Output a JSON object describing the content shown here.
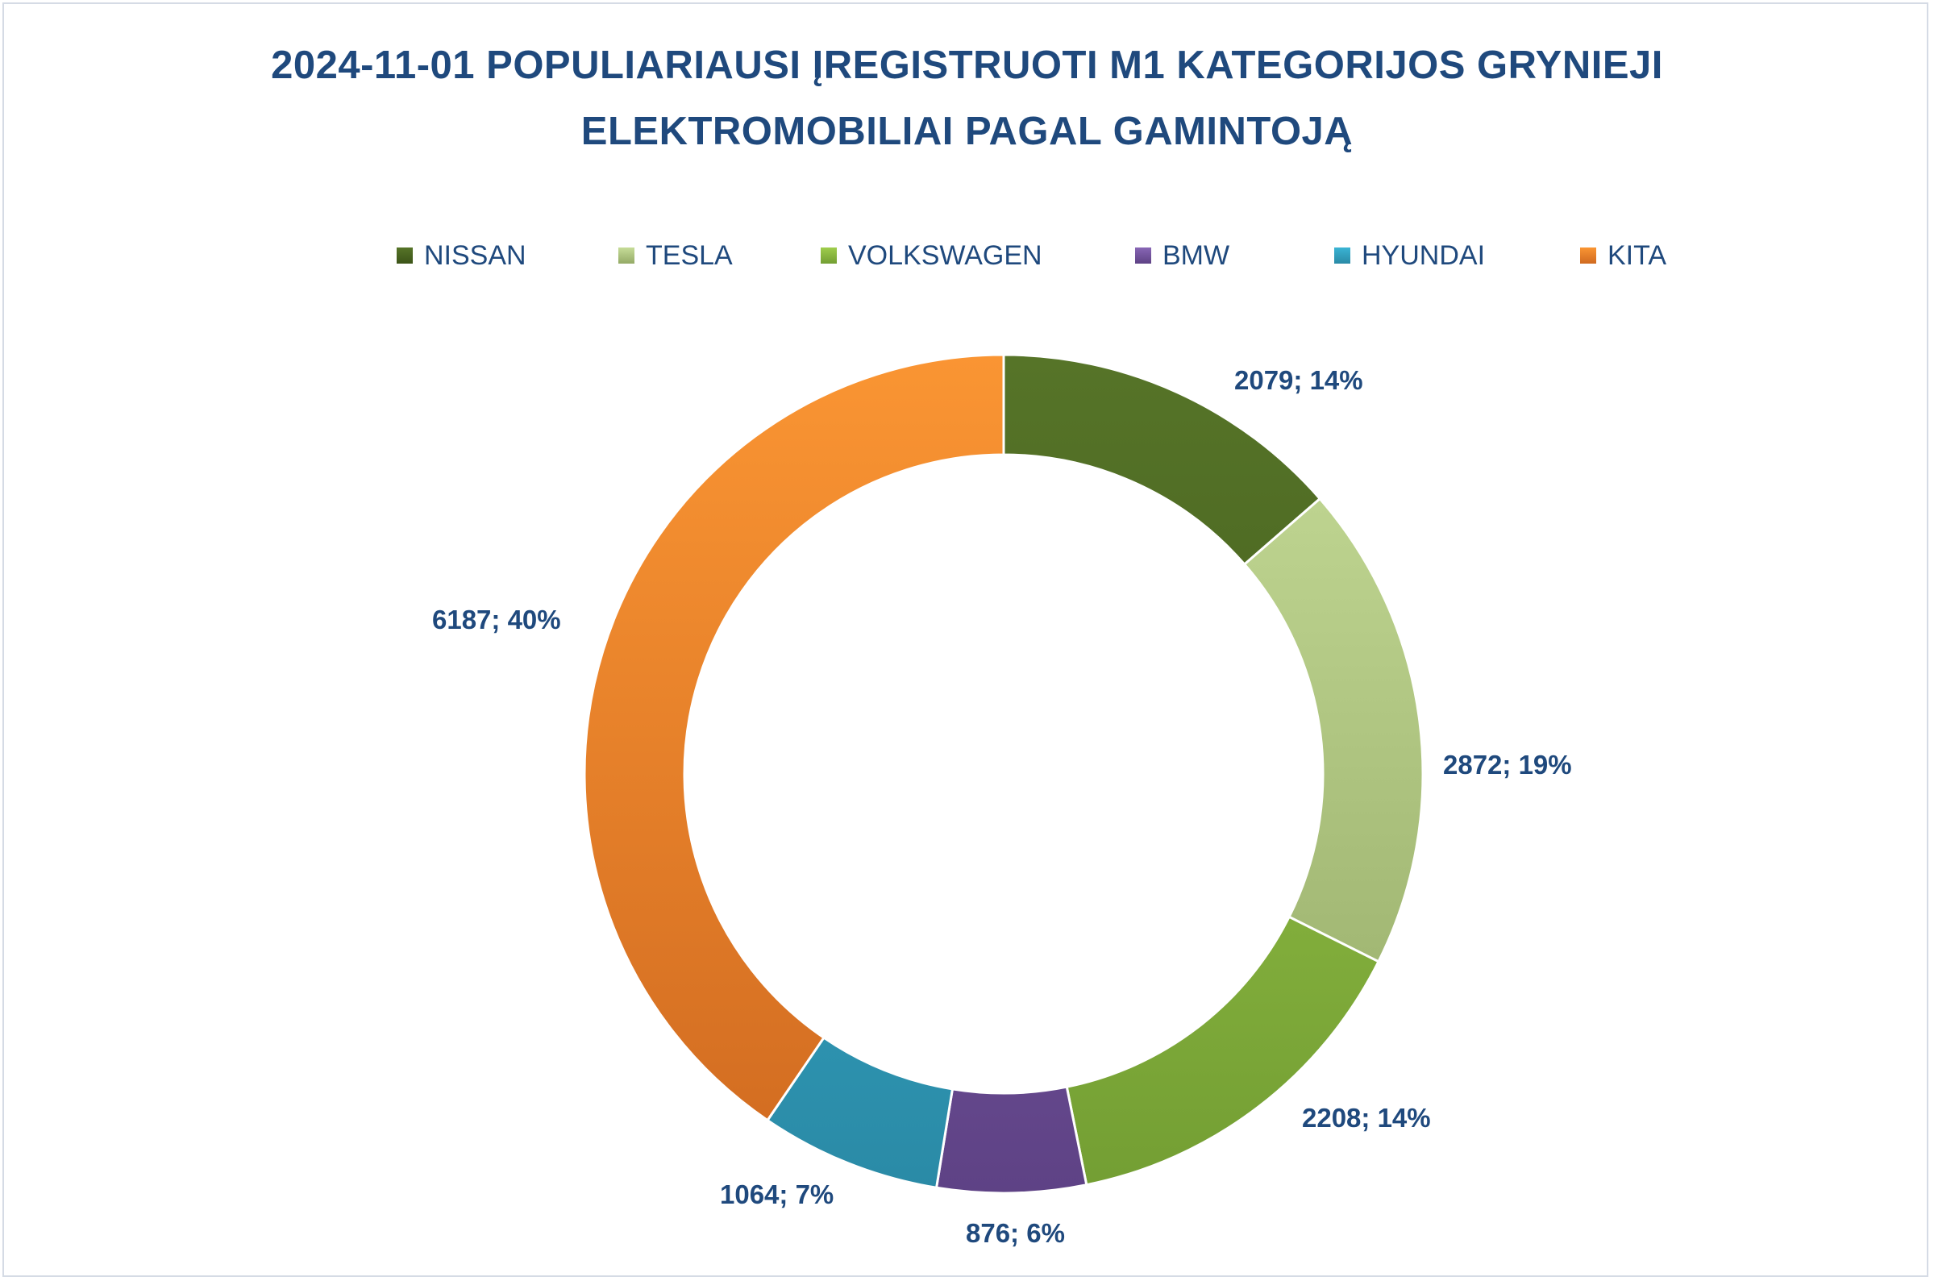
{
  "chart_data": {
    "type": "pie",
    "variant": "doughnut",
    "title_line1": "2024-11-01 POPULIARIAUSI ĮREGISTRUOTI M1 KATEGORIJOS GRYNIEJI",
    "title_line2": "ELEKTROMOBILIAI PAGAL GAMINTOJĄ",
    "legend_position": "top",
    "categories": [
      "NISSAN",
      "TESLA",
      "VOLKSWAGEN",
      "BMW",
      "HYUNDAI",
      "KITA"
    ],
    "values": [
      2079,
      2872,
      2208,
      876,
      1064,
      6187
    ],
    "data_labels": [
      "2079; 14%",
      "2872; 19%",
      "2208; 14%",
      "876; 6%",
      "1064; 7%",
      "6187; 40%"
    ],
    "colors": [
      [
        "#567428",
        "#3c5418"
      ],
      [
        "#c6dc98",
        "#94aa66"
      ],
      [
        "#9fcd4c",
        "#739e33"
      ],
      [
        "#8866b5",
        "#5e4285"
      ],
      [
        "#3ab4d4",
        "#2a8aa6"
      ],
      [
        "#fa9533",
        "#d06a20"
      ]
    ]
  }
}
